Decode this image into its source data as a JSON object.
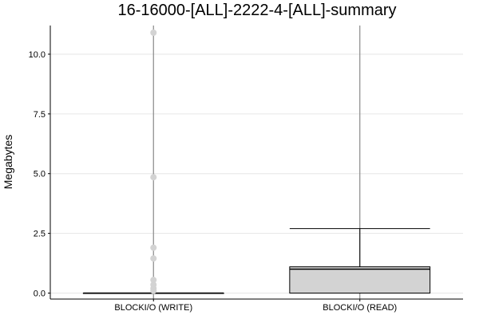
{
  "chart_data": {
    "type": "box",
    "title": "16-16000-[ALL]-2222-4-[ALL]-summary",
    "xlabel": "",
    "ylabel": "Megabytes",
    "ylim": [
      -0.25,
      11.2
    ],
    "yticks": [
      0.0,
      2.5,
      5.0,
      7.5,
      10.0
    ],
    "ytick_labels": [
      "0.0",
      "2.5",
      "5.0",
      "7.5",
      "10.0"
    ],
    "grid": true,
    "legend": "none",
    "categories": [
      "BLOCKI/O (WRITE)",
      "BLOCKI/O (READ)"
    ],
    "boxes": [
      {
        "category": "BLOCKI/O (WRITE)",
        "whisker_low": 0.0,
        "q1": 0.0,
        "median": 0.0,
        "q3": 0.0,
        "whisker_high": 0.0,
        "outliers": [
          10.9,
          4.85,
          1.9,
          1.45,
          0.55,
          0.35,
          0.2,
          0.1
        ]
      },
      {
        "category": "BLOCKI/O (READ)",
        "whisker_low": 0.0,
        "q1": 0.0,
        "median": 1.0,
        "q3": 1.1,
        "whisker_high": 2.7,
        "outliers": []
      }
    ],
    "colors": {
      "box_fill": "#d3d3d3",
      "outlier": "#d3d3d3",
      "line": "#000000",
      "grid": "#e6e6e6",
      "center_line": "#888888"
    }
  }
}
